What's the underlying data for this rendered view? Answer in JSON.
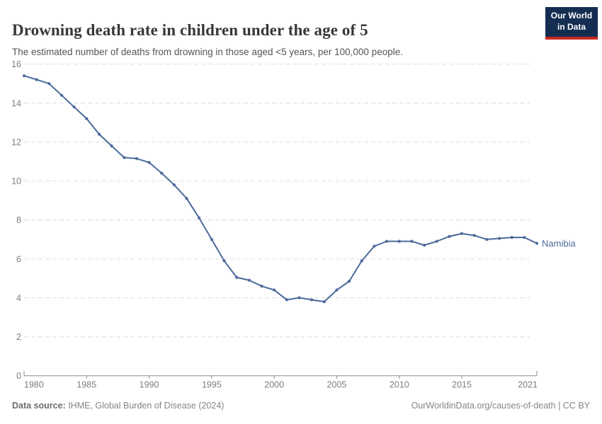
{
  "header": {
    "title": "Drowning death rate in children under the age of 5",
    "subtitle": "The estimated number of deaths from drowning in those aged <5 years, per 100,000 people.",
    "logo_line1": "Our World",
    "logo_line2": "in Data",
    "logo_bg": "#142e52",
    "logo_accent": "#c9291f"
  },
  "chart_data": {
    "type": "line",
    "title": "Drowning death rate in children under the age of 5",
    "subtitle": "The estimated number of deaths from drowning in those aged <5 years, per 100,000 people.",
    "xlabel": "",
    "ylabel": "",
    "xlim": [
      1980,
      2021
    ],
    "ylim": [
      0,
      16
    ],
    "yticks": [
      0,
      2,
      4,
      6,
      8,
      10,
      12,
      14,
      16
    ],
    "xticks": [
      1980,
      1985,
      1990,
      1995,
      2000,
      2005,
      2010,
      2015,
      2021
    ],
    "grid": "horizontal-dashed",
    "legend_position": "end-of-line-label",
    "x": [
      1980,
      1981,
      1982,
      1983,
      1984,
      1985,
      1986,
      1987,
      1988,
      1989,
      1990,
      1991,
      1992,
      1993,
      1994,
      1995,
      1996,
      1997,
      1998,
      1999,
      2000,
      2001,
      2002,
      2003,
      2004,
      2005,
      2006,
      2007,
      2008,
      2009,
      2010,
      2011,
      2012,
      2013,
      2014,
      2015,
      2016,
      2017,
      2018,
      2019,
      2020,
      2021
    ],
    "series": [
      {
        "name": "Namibia",
        "color": "#4c6a9c",
        "values": [
          15.4,
          15.2,
          15.0,
          14.4,
          13.8,
          13.2,
          12.4,
          11.8,
          11.2,
          11.15,
          10.95,
          10.4,
          9.8,
          9.1,
          8.1,
          7.0,
          5.9,
          5.05,
          4.9,
          4.6,
          4.4,
          3.9,
          4.0,
          3.9,
          3.8,
          4.4,
          4.85,
          5.9,
          6.65,
          6.9,
          6.9,
          6.9,
          6.7,
          6.9,
          7.15,
          7.3,
          7.2,
          7.0,
          7.05,
          7.1,
          7.1,
          6.8
        ]
      }
    ],
    "colors": {
      "gridline": "#dedede",
      "axis": "#8b8b8b",
      "tick_label": "#7e7e7e"
    }
  },
  "footer": {
    "source_label": "Data source:",
    "source_text": " IHME, Global Burden of Disease (2024)",
    "credit": "OurWorldinData.org/causes-of-death | CC BY"
  }
}
